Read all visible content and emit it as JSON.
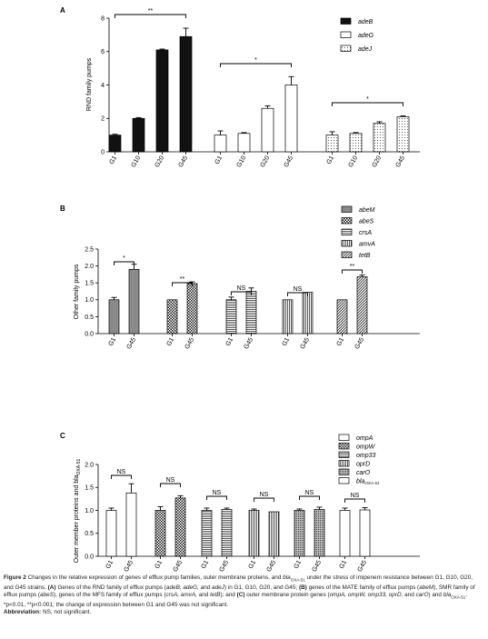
{
  "panels": [
    {
      "letter": "A",
      "ylabel": "RND family pumps",
      "ylim": [
        0,
        8
      ],
      "yticks": [
        "0",
        "2",
        "4",
        "6",
        "8"
      ],
      "legend": [
        {
          "label": "adeB",
          "fill": "black"
        },
        {
          "label": "adeG",
          "fill": "white"
        },
        {
          "label": "adeJ",
          "fill": "dots"
        }
      ],
      "chart_data": {
        "type": "bar",
        "categories": [
          "G1",
          "G10",
          "G20",
          "G45"
        ],
        "series": [
          {
            "name": "adeB",
            "values": [
              1.0,
              2.0,
              6.1,
              6.9
            ],
            "errors": [
              0.05,
              0.05,
              0.05,
              0.5
            ]
          },
          {
            "name": "adeG",
            "values": [
              1.0,
              1.1,
              2.6,
              4.0
            ],
            "errors": [
              0.25,
              0.05,
              0.15,
              0.5
            ]
          },
          {
            "name": "adeJ",
            "values": [
              1.0,
              1.1,
              1.7,
              2.1
            ],
            "errors": [
              0.2,
              0.05,
              0.1,
              0.05
            ]
          }
        ],
        "significance": [
          "**",
          "*",
          "*"
        ]
      }
    },
    {
      "letter": "B",
      "ylabel": "Other family pumps",
      "ylim": [
        0,
        2.5
      ],
      "yticks": [
        "0.0",
        "0.5",
        "1.0",
        "1.5",
        "2.0",
        "2.5"
      ],
      "legend": [
        {
          "label": "abeM",
          "fill": "gray"
        },
        {
          "label": "abeS",
          "fill": "checker"
        },
        {
          "label": "crsA",
          "fill": "hlines"
        },
        {
          "label": "amvA",
          "fill": "vlines"
        },
        {
          "label": "tetB",
          "fill": "diag"
        }
      ],
      "chart_data": {
        "type": "bar",
        "categories": [
          "G1",
          "G45"
        ],
        "series": [
          {
            "name": "abeM",
            "values": [
              1.0,
              1.9
            ],
            "errors": [
              0.07,
              0.15
            ]
          },
          {
            "name": "abeS",
            "values": [
              1.0,
              1.48
            ],
            "errors": [
              0.0,
              0.05
            ]
          },
          {
            "name": "crsA",
            "values": [
              1.0,
              1.25
            ],
            "errors": [
              0.08,
              0.1
            ]
          },
          {
            "name": "amvA",
            "values": [
              1.0,
              1.22
            ],
            "errors": [
              0.0,
              0.0
            ]
          },
          {
            "name": "tetB",
            "values": [
              1.0,
              1.68
            ],
            "errors": [
              0.0,
              0.05
            ]
          }
        ],
        "significance": [
          "*",
          "**",
          "NS",
          "NS",
          "**"
        ]
      }
    },
    {
      "letter": "C",
      "ylabel": "Outer member proteins and bla",
      "ylabel_sub": "OXA-51",
      "ylim": [
        0,
        2
      ],
      "yticks": [
        "0.0",
        "0.5",
        "1.0",
        "1.5",
        "2.0"
      ],
      "legend": [
        {
          "label": "ompA",
          "sub": "",
          "fill": "white"
        },
        {
          "label": "ompW",
          "sub": "",
          "fill": "checker"
        },
        {
          "label": "omp33",
          "sub": "",
          "fill": "hlines"
        },
        {
          "label": "oprD",
          "sub": "",
          "fill": "vlines"
        },
        {
          "label": "carO",
          "sub": "",
          "fill": "dense"
        },
        {
          "label": "bla",
          "sub": "OXA-51",
          "fill": "white"
        }
      ],
      "chart_data": {
        "type": "bar",
        "categories": [
          "G1",
          "G45"
        ],
        "series": [
          {
            "name": "ompA",
            "values": [
              1.0,
              1.38
            ],
            "errors": [
              0.05,
              0.2
            ]
          },
          {
            "name": "ompW",
            "values": [
              1.0,
              1.27
            ],
            "errors": [
              0.08,
              0.05
            ]
          },
          {
            "name": "omp33",
            "values": [
              1.0,
              1.02
            ],
            "errors": [
              0.05,
              0.03
            ]
          },
          {
            "name": "oprD",
            "values": [
              1.0,
              0.97
            ],
            "errors": [
              0.03,
              0.0
            ]
          },
          {
            "name": "carO",
            "values": [
              1.0,
              1.02
            ],
            "errors": [
              0.03,
              0.05
            ]
          },
          {
            "name": "blaOXA-51",
            "values": [
              1.0,
              1.01
            ],
            "errors": [
              0.05,
              0.05
            ]
          }
        ],
        "significance": [
          "NS",
          "NS",
          "NS",
          "NS",
          "NS",
          "NS"
        ]
      }
    }
  ],
  "caption": {
    "s1": "Figure 2",
    "s2": " Changes in the relative expression of genes of efflux pump families, outer membrane proteins, and ",
    "s3": "bla",
    "s4": "OXA-51",
    "s5": " under the stress of imipenem resistance between G1, G10, G20, and G45 strains. ",
    "s6": "(A)",
    "s7": " Genes of the RND family of efflux pumps (",
    "s8": "adeB, adeG,",
    "s9": " and ",
    "s10": "adeJ",
    "s11": ") in G1, G10, G20, and G45; ",
    "s12": "(B)",
    "s13": " genes of the MATE family of efflux pumps (",
    "s14": "abeM",
    "s15": "), SMR family of efflux pumps (",
    "s16": "abeS",
    "s17": "), genes of the MFS family of efflux pumps (",
    "s18": "crsA, amvA,",
    "s19": " and ",
    "s20": "tetB",
    "s21": "); and ",
    "s22": "(C)",
    "s23": " outer membrane protein genes (",
    "s24": "ompA, ompW, omp33, oprD,",
    "s25": " and ",
    "s26": "carO",
    "s27": ") and ",
    "s28": "bla",
    "s29": "OXA-51",
    "s30": ". *p<0.01, **p<0.001; the change of expression between G1 and G45 was not significant.",
    "abbrev_label": "Abbreviation:",
    "abbrev_text": " NS, not significant."
  }
}
